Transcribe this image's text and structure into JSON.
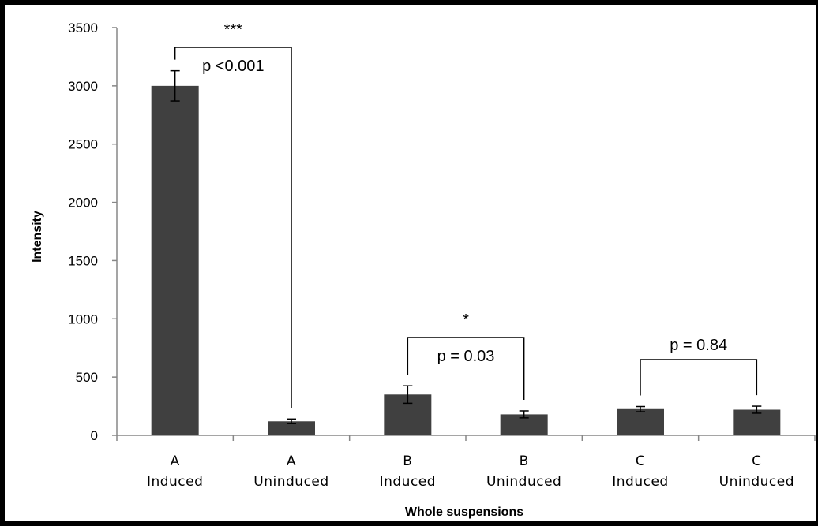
{
  "chart_data": {
    "type": "bar",
    "categories": [
      [
        "A",
        "Induced"
      ],
      [
        "A",
        "Uninduced"
      ],
      [
        "B",
        "Induced"
      ],
      [
        "B",
        "Uninduced"
      ],
      [
        "C",
        "Induced"
      ],
      [
        "C",
        "Uninduced"
      ]
    ],
    "values": [
      3000,
      120,
      350,
      180,
      225,
      220
    ],
    "errors": [
      130,
      20,
      75,
      30,
      22,
      30
    ],
    "xlabel": "Whole suspensions",
    "ylabel": "Intensity",
    "ylim": [
      0,
      3500
    ],
    "yticks": [
      0,
      500,
      1000,
      1500,
      2000,
      2500,
      3000,
      3500
    ],
    "grid": false,
    "bar_color": "#404040",
    "comparisons": [
      {
        "from": 0,
        "to": 1,
        "stars": "***",
        "label": "p <0.001"
      },
      {
        "from": 2,
        "to": 3,
        "stars": "*",
        "label": "p = 0.03"
      },
      {
        "from": 4,
        "to": 5,
        "stars": "",
        "label": "p = 0.84"
      }
    ]
  }
}
